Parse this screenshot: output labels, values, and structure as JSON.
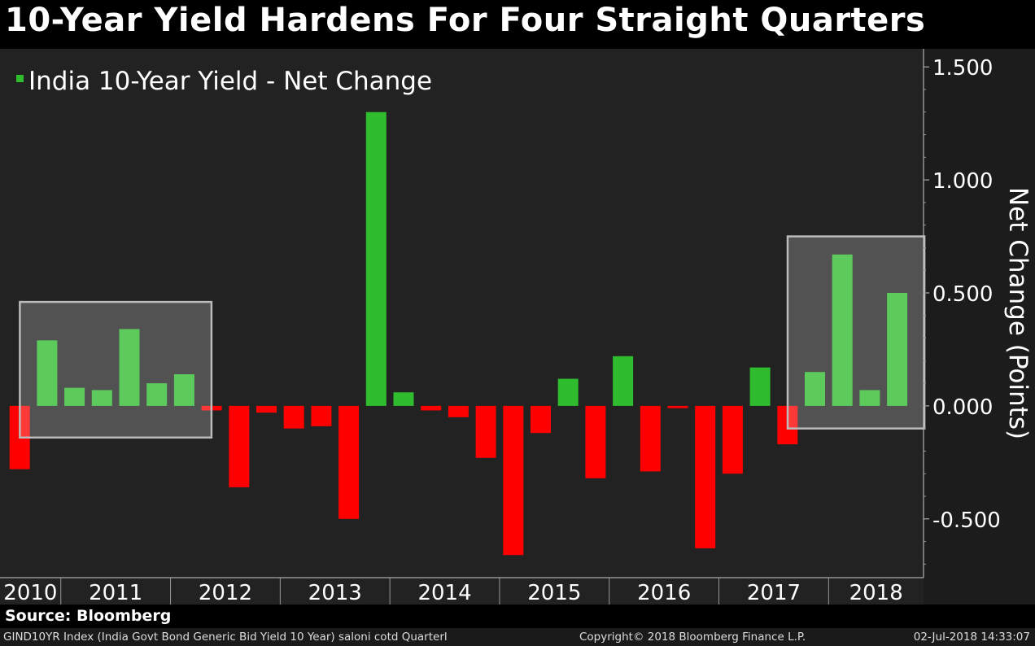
{
  "title": "10-Year Yield Hardens For Four Straight Quarters",
  "source": "Source: Bloomberg",
  "footer": {
    "left": "GIND10YR Index (India Govt Bond Generic Bid Yield 10 Year) saloni cotd  Quarterl",
    "middle": "Copyright© 2018 Bloomberg Finance L.P.",
    "right": "02-Jul-2018 14:33:07"
  },
  "colors": {
    "background": "#222222",
    "positive": "#2fbd2f",
    "negative": "#ff0000",
    "highlight_box": "#bbbbbb"
  },
  "chart_data": {
    "type": "bar",
    "title": "10-Year Yield Hardens For Four Straight Quarters",
    "legend": [
      "India 10-Year Yield - Net Change"
    ],
    "legend_position": "top-left",
    "ylabel": "Net Change (Points)",
    "xlabel": "",
    "ylim": [
      -0.76,
      1.58
    ],
    "yticks": [
      1.5,
      1.0,
      0.5,
      0.0,
      -0.5
    ],
    "ytick_labels": [
      "1.500",
      "1.000",
      "0.500",
      "0.000",
      "-0.500"
    ],
    "year_labels": [
      "2010",
      "2011",
      "2012",
      "2013",
      "2014",
      "2015",
      "2016",
      "2017",
      "2018"
    ],
    "year_quarter_counts": [
      2,
      4,
      4,
      4,
      4,
      4,
      4,
      4,
      3
    ],
    "categories": [
      "2010 Q3",
      "2010 Q4",
      "2011 Q1",
      "2011 Q2",
      "2011 Q3",
      "2011 Q4",
      "2012 Q1",
      "2012 Q2",
      "2012 Q3",
      "2012 Q4",
      "2013 Q1",
      "2013 Q2",
      "2013 Q3",
      "2013 Q4",
      "2014 Q1",
      "2014 Q2",
      "2014 Q3",
      "2014 Q4",
      "2015 Q1",
      "2015 Q2",
      "2015 Q3",
      "2015 Q4",
      "2016 Q1",
      "2016 Q2",
      "2016 Q3",
      "2016 Q4",
      "2017 Q1",
      "2017 Q2",
      "2017 Q3",
      "2017 Q4",
      "2018 Q1",
      "2018 Q2",
      "2018 Q3"
    ],
    "values": [
      -0.28,
      0.29,
      0.08,
      0.07,
      0.34,
      0.1,
      0.14,
      -0.02,
      -0.36,
      -0.03,
      -0.1,
      -0.09,
      -0.5,
      1.3,
      0.06,
      -0.02,
      -0.05,
      -0.23,
      -0.66,
      -0.12,
      0.12,
      -0.32,
      0.22,
      -0.29,
      -0.01,
      -0.63,
      -0.3,
      0.17,
      -0.17,
      0.15,
      0.67,
      0.07,
      0.5
    ],
    "highlight_ranges": [
      {
        "from": "2010 Q4",
        "to": "2012 Q1",
        "y_from": -0.14,
        "y_to": 0.46
      },
      {
        "from": "2017 Q4",
        "to": "2018 Q3",
        "y_from": -0.1,
        "y_to": 0.75
      }
    ]
  }
}
